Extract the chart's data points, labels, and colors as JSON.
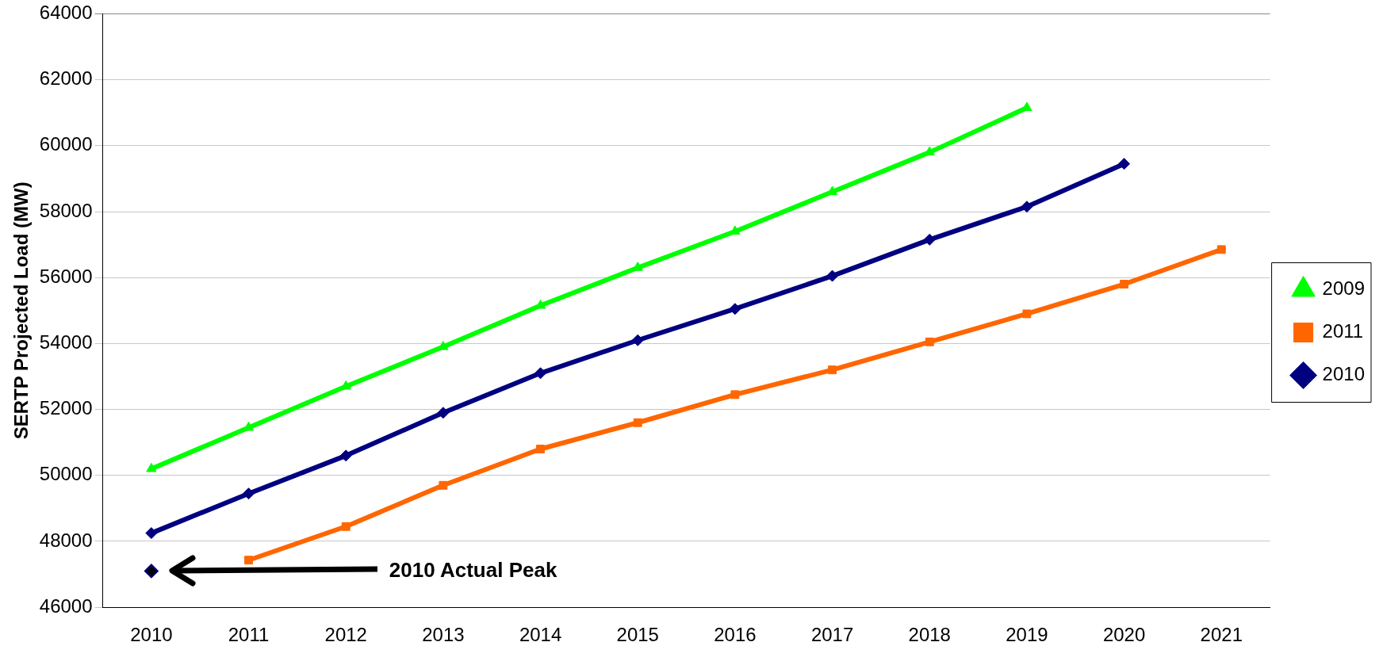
{
  "chart_data": {
    "type": "line",
    "ylabel": "SERTP Projected Load (MW)",
    "categories": [
      "2010",
      "2011",
      "2012",
      "2013",
      "2014",
      "2015",
      "2016",
      "2017",
      "2018",
      "2019",
      "2020",
      "2021"
    ],
    "ylim": [
      46000,
      64000
    ],
    "yticks": [
      46000,
      48000,
      50000,
      52000,
      54000,
      56000,
      58000,
      60000,
      62000,
      64000
    ],
    "grid": "y",
    "legend": "right",
    "series": [
      {
        "name": "2009",
        "color": "#00ff00",
        "marker": "triangle",
        "values": [
          50200,
          51450,
          52700,
          53900,
          55150,
          56300,
          57400,
          58600,
          59800,
          61150,
          null,
          null
        ]
      },
      {
        "name": "2011",
        "color": "#ff6600",
        "marker": "square",
        "values": [
          null,
          47430,
          48450,
          49700,
          50800,
          51600,
          52450,
          53200,
          54050,
          54900,
          55800,
          56850
        ]
      },
      {
        "name": "2010",
        "color": "#000080",
        "marker": "diamond",
        "values": [
          48250,
          49450,
          50600,
          51900,
          53100,
          54100,
          55050,
          56050,
          57150,
          58150,
          59450,
          null
        ]
      },
      {
        "type": "scatter",
        "color": "#000000",
        "marker": "diamond",
        "values": [
          47100,
          null,
          null,
          null,
          null,
          null,
          null,
          null,
          null,
          null,
          null,
          null
        ]
      }
    ],
    "annotations": [
      "2010 Actual Peak"
    ]
  }
}
